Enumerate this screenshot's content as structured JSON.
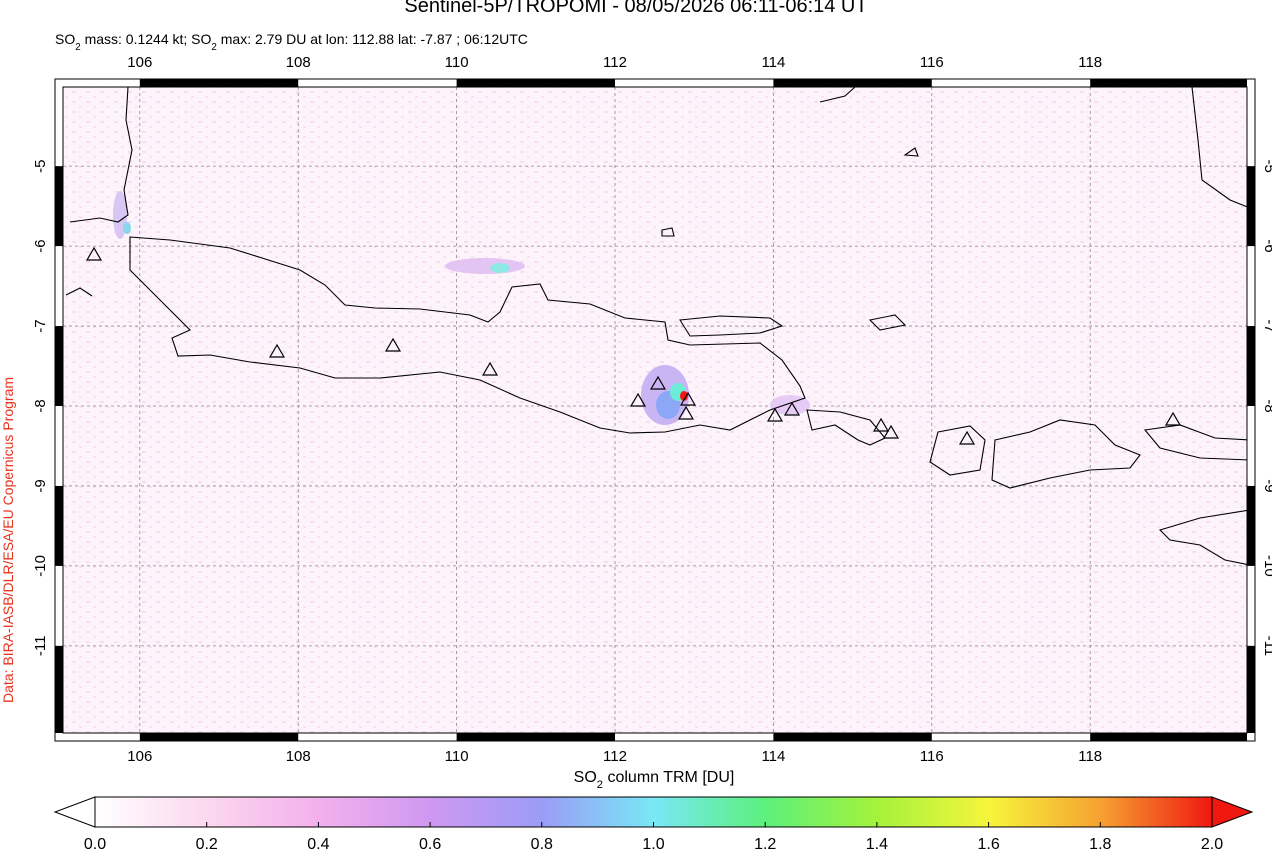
{
  "header": {
    "title": "Sentinel-5P/TROPOMI - 08/05/2026 06:11-06:14 UT",
    "subtitle": [
      "SO",
      "2",
      " mass: 0.1244 kt; SO",
      "2",
      " max: 2.79 DU at lon: 112.88 lat: -7.87 ; 06:12UTC"
    ]
  },
  "credit": "Data: BIRA-IASB/DLR/ESA/EU Copernicus Program",
  "map": {
    "lonlim": [
      105.03,
      119.98
    ],
    "latlim": [
      -12.09,
      -4.01
    ],
    "lon_ticks": [
      106,
      108,
      110,
      112,
      114,
      116,
      118
    ],
    "lat_ticks": [
      -5,
      -6,
      -7,
      -8,
      -9,
      -10,
      -11
    ],
    "grid": true
  },
  "colorbar": {
    "label": [
      "SO",
      "2",
      " column TRM [DU]"
    ],
    "range": [
      0,
      2
    ],
    "ticks": [
      {
        "value": 0,
        "label": "0.0"
      },
      {
        "value": 0.2,
        "label": "0.2"
      },
      {
        "value": 0.4,
        "label": "0.4"
      },
      {
        "value": 0.6,
        "label": "0.6"
      },
      {
        "value": 0.8,
        "label": "0.8"
      },
      {
        "value": 1.0,
        "label": "1.0"
      },
      {
        "value": 1.2,
        "label": "1.2"
      },
      {
        "value": 1.4,
        "label": "1.4"
      },
      {
        "value": 1.6,
        "label": "1.6"
      },
      {
        "value": 1.8,
        "label": "1.8"
      },
      {
        "value": 2.0,
        "label": "2.0"
      }
    ],
    "colors": [
      "#ffffff",
      "#fbd8ef",
      "#f3b0ec",
      "#cf98f2",
      "#9b9cf6",
      "#78e8f6",
      "#5cf07c",
      "#a4f23c",
      "#f6f53c",
      "#f6a232",
      "#f01810"
    ]
  }
}
